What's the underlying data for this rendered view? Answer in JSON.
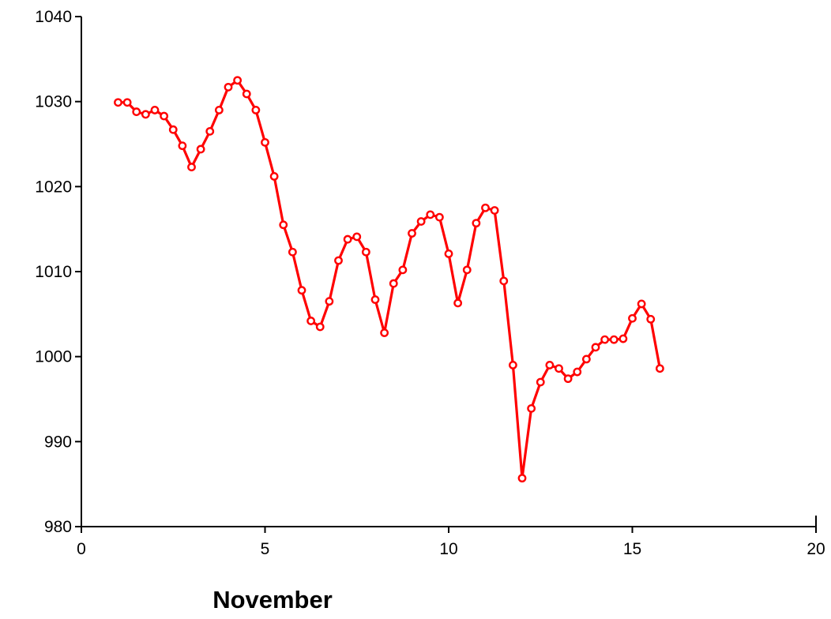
{
  "chart_data": {
    "type": "line",
    "title": "",
    "xlabel": "November",
    "ylabel": "",
    "xlim": [
      0,
      20
    ],
    "ylim": [
      980,
      1040
    ],
    "xticks": [
      0,
      5,
      10,
      15,
      20
    ],
    "yticks": [
      980,
      990,
      1000,
      1010,
      1020,
      1030,
      1040
    ],
    "grid": false,
    "legend": "none",
    "colors": {
      "series": "#ff0000",
      "axes": "#000000",
      "background": "#ffffff"
    },
    "series": [
      {
        "marker": "open-circle",
        "x": [
          1.0,
          1.25,
          1.5,
          1.75,
          2.0,
          2.25,
          2.5,
          2.75,
          3.0,
          3.25,
          3.5,
          3.75,
          4.0,
          4.25,
          4.5,
          4.75,
          5.0,
          5.25,
          5.5,
          5.75,
          6.0,
          6.25,
          6.5,
          6.75,
          7.0,
          7.25,
          7.5,
          7.75,
          8.0,
          8.25,
          8.5,
          8.75,
          9.0,
          9.25,
          9.5,
          9.75,
          10.0,
          10.25,
          10.5,
          10.75,
          11.0,
          11.25,
          11.5,
          11.75,
          12.0,
          12.25,
          12.5,
          12.75,
          13.0,
          13.25,
          13.5,
          13.75,
          14.0,
          14.25,
          14.5,
          14.75,
          15.0,
          15.25,
          15.5,
          15.75
        ],
        "values": [
          1029.9,
          1029.9,
          1028.8,
          1028.5,
          1029.0,
          1028.3,
          1026.7,
          1024.8,
          1022.3,
          1024.4,
          1026.5,
          1029.0,
          1031.7,
          1032.5,
          1030.9,
          1029.0,
          1025.2,
          1021.2,
          1015.5,
          1012.3,
          1007.8,
          1004.2,
          1003.5,
          1006.5,
          1011.3,
          1013.8,
          1014.1,
          1012.3,
          1006.7,
          1002.8,
          1008.6,
          1010.2,
          1014.5,
          1015.9,
          1016.7,
          1016.4,
          1012.1,
          1006.3,
          1010.2,
          1015.7,
          1017.5,
          1017.2,
          1008.9,
          999.0,
          985.7,
          993.9,
          997.0,
          999.0,
          998.6,
          997.4,
          998.2,
          999.7,
          1001.1,
          1002.0,
          1002.0,
          1002.1,
          1004.5,
          1006.2,
          1004.4,
          998.6
        ]
      }
    ]
  }
}
